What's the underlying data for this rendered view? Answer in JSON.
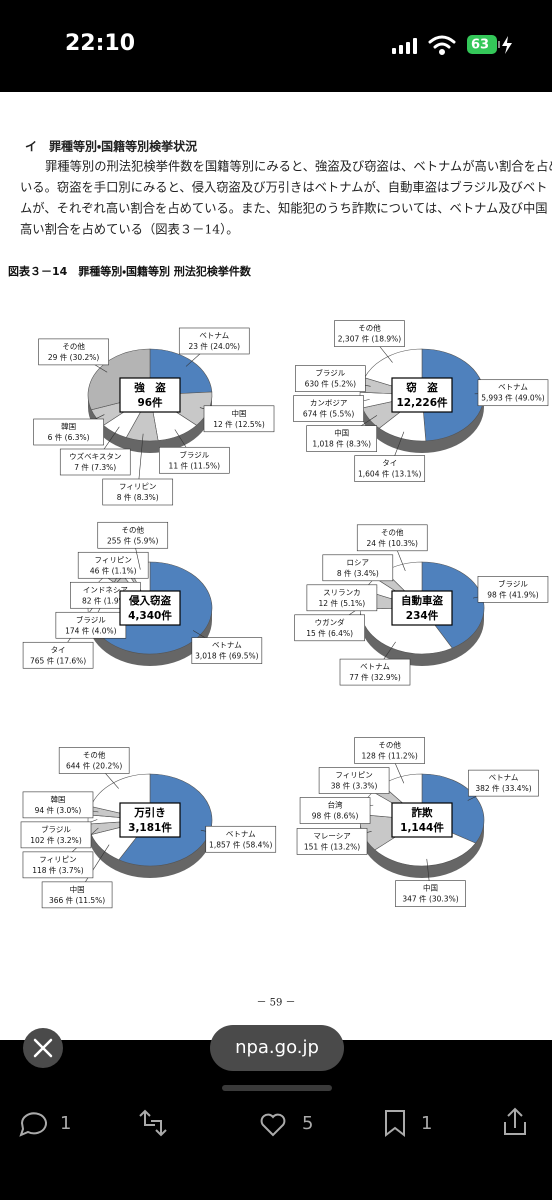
{
  "status_bar": {
    "time": "22:10",
    "battery": "63"
  },
  "document": {
    "heading": "イ　罪種等別・国籍等別検挙状況",
    "paragraph": [
      "罪種等別の刑法犯検挙件数を国籍等別にみると、強盗及び窃盗は、ベトナムが高い割合を占め",
      "いる。窃盗を手口別にみると、侵入窃盗及び万引きはベトナムが、自動車盗はブラジル及びベト",
      "ムが、それぞれ高い割合を占めている。また、知能犯のうち詐欺については、ベトナム及び中国",
      "高い割合を占めている（図表３－14）。"
    ],
    "figure_title": "図表３－14　罪種等別・国籍等別 刑法犯検挙件数",
    "page_number": "－ 59 －"
  },
  "chart_data": [
    {
      "type": "pie",
      "title": "強　盗",
      "subtitle": "96件",
      "categories": [
        "ベトナム",
        "中国",
        "ブラジル",
        "フィリピン",
        "ウズベキスタン",
        "韓国",
        "その他"
      ],
      "values": [
        23,
        12,
        11,
        8,
        7,
        6,
        29
      ],
      "value_labels": [
        "23 件 (24.0%)",
        "12 件 (12.5%)",
        "11 件 (11.5%)",
        "8 件 (8.3%)",
        "7 件 (7.3%)",
        "6 件 (6.3%)",
        "29 件 (30.2%)"
      ],
      "colors": [
        "#4f81bd",
        "#c8c8c8",
        "#ffffff",
        "#c8c8c8",
        "#ffffff",
        "#c8c8c8",
        "#b4b4b4"
      ]
    },
    {
      "type": "pie",
      "title": "窃　盗",
      "subtitle": "12,226件",
      "categories": [
        "ベトナム",
        "タイ",
        "中国",
        "カンボジア",
        "ブラジル",
        "その他"
      ],
      "values": [
        5993,
        1604,
        1018,
        674,
        630,
        2307
      ],
      "value_labels": [
        "5,993 件 (49.0%)",
        "1,604 件 (13.1%)",
        "1,018 件 (8.3%)",
        "674 件 (5.5%)",
        "630 件 (5.2%)",
        "2,307 件 (18.9%)"
      ],
      "colors": [
        "#4f81bd",
        "#ffffff",
        "#c8c8c8",
        "#ffffff",
        "#c8c8c8",
        "#ffffff"
      ]
    },
    {
      "type": "pie",
      "title": "侵入窃盗",
      "subtitle": "4,340件",
      "categories": [
        "ベトナム",
        "タイ",
        "ブラジル",
        "インドネシア",
        "フィリピン",
        "その他"
      ],
      "values": [
        3018,
        765,
        174,
        82,
        46,
        255
      ],
      "value_labels": [
        "3,018 件 (69.5%)",
        "765 件 (17.6%)",
        "174 件 (4.0%)",
        "82 件 (1.9%)",
        "46 件 (1.1%)",
        "255 件 (5.9%)"
      ],
      "colors": [
        "#4f81bd",
        "#ffffff",
        "#c8c8c8",
        "#ffffff",
        "#c8c8c8",
        "#ffffff"
      ]
    },
    {
      "type": "pie",
      "title": "自動車盗",
      "subtitle": "234件",
      "categories": [
        "ブラジル",
        "ベトナム",
        "ウガンダ",
        "スリランカ",
        "ロシア",
        "その他"
      ],
      "values": [
        98,
        77,
        15,
        12,
        8,
        24
      ],
      "value_labels": [
        "98 件 (41.9%)",
        "77 件 (32.9%)",
        "15 件 (6.4%)",
        "12 件 (5.1%)",
        "8 件 (3.4%)",
        "24 件 (10.3%)"
      ],
      "colors": [
        "#4f81bd",
        "#ffffff",
        "#c8c8c8",
        "#ffffff",
        "#c8c8c8",
        "#ffffff"
      ]
    },
    {
      "type": "pie",
      "title": "万引き",
      "subtitle": "3,181件",
      "categories": [
        "ベトナム",
        "中国",
        "フィリピン",
        "ブラジル",
        "韓国",
        "その他"
      ],
      "values": [
        1857,
        366,
        118,
        102,
        94,
        644
      ],
      "value_labels": [
        "1,857 件 (58.4%)",
        "366 件 (11.5%)",
        "118 件 (3.7%)",
        "102 件 (3.2%)",
        "94 件 (3.0%)",
        "644 件 (20.2%)"
      ],
      "colors": [
        "#4f81bd",
        "#ffffff",
        "#c8c8c8",
        "#ffffff",
        "#c8c8c8",
        "#ffffff"
      ]
    },
    {
      "type": "pie",
      "title": "詐欺",
      "subtitle": "1,144件",
      "categories": [
        "ベトナム",
        "中国",
        "マレーシア",
        "台湾",
        "フィリピン",
        "その他"
      ],
      "values": [
        382,
        347,
        151,
        98,
        38,
        128
      ],
      "value_labels": [
        "382 件 (33.4%)",
        "347 件 (30.3%)",
        "151 件 (13.2%)",
        "98 件 (8.6%)",
        "38 件 (3.3%)",
        "128 件 (11.2%)"
      ],
      "colors": [
        "#4f81bd",
        "#ffffff",
        "#c8c8c8",
        "#ffffff",
        "#c8c8c8",
        "#ffffff"
      ]
    }
  ],
  "browser_bar": {
    "domain": "npa.go.jp"
  },
  "actions": {
    "replies": 1,
    "likes": 5,
    "bookmarks": 1
  }
}
